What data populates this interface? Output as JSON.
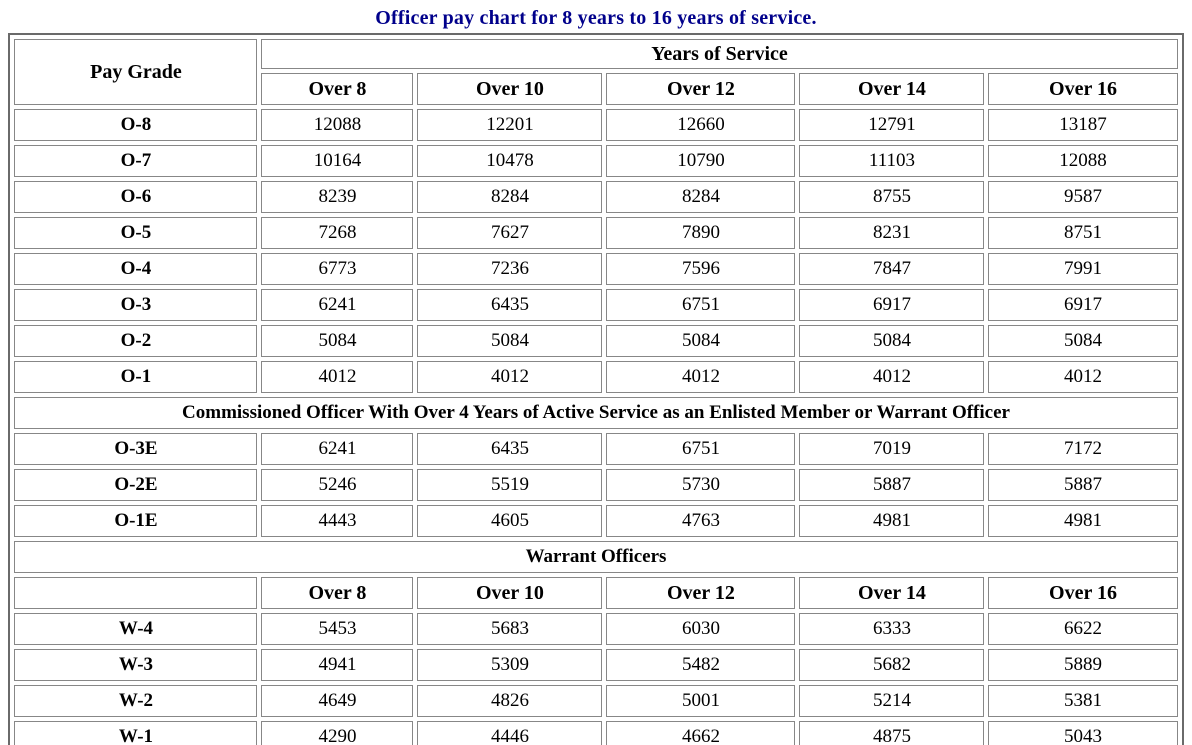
{
  "title": "Officer pay chart for 8 years to 16 years of service.",
  "colors": {
    "title_text": "#00008b",
    "outer_border": "#6a6a6a",
    "cell_border": "#878787",
    "text": "#000000",
    "background": "#ffffff"
  },
  "table": {
    "pay_grade_header": "Pay Grade",
    "years_of_service_header": "Years of Service",
    "service_columns": [
      "Over 8",
      "Over 10",
      "Over 12",
      "Over 14",
      "Over 16"
    ],
    "sections": [
      {
        "name": "officers",
        "header": null,
        "repeat_service_columns": false,
        "rows": [
          {
            "grade": "O-8",
            "values": [
              12088,
              12201,
              12660,
              12791,
              13187
            ]
          },
          {
            "grade": "O-7",
            "values": [
              10164,
              10478,
              10790,
              11103,
              12088
            ]
          },
          {
            "grade": "O-6",
            "values": [
              8239,
              8284,
              8284,
              8755,
              9587
            ]
          },
          {
            "grade": "O-5",
            "values": [
              7268,
              7627,
              7890,
              8231,
              8751
            ]
          },
          {
            "grade": "O-4",
            "values": [
              6773,
              7236,
              7596,
              7847,
              7991
            ]
          },
          {
            "grade": "O-3",
            "values": [
              6241,
              6435,
              6751,
              6917,
              6917
            ]
          },
          {
            "grade": "O-2",
            "values": [
              5084,
              5084,
              5084,
              5084,
              5084
            ]
          },
          {
            "grade": "O-1",
            "values": [
              4012,
              4012,
              4012,
              4012,
              4012
            ]
          }
        ]
      },
      {
        "name": "commissioned-with-enlisted-service",
        "header": "Commissioned Officer With Over 4 Years of Active Service as an Enlisted Member or Warrant Officer",
        "repeat_service_columns": false,
        "rows": [
          {
            "grade": "O-3E",
            "values": [
              6241,
              6435,
              6751,
              7019,
              7172
            ]
          },
          {
            "grade": "O-2E",
            "values": [
              5246,
              5519,
              5730,
              5887,
              5887
            ]
          },
          {
            "grade": "O-1E",
            "values": [
              4443,
              4605,
              4763,
              4981,
              4981
            ]
          }
        ]
      },
      {
        "name": "warrant-officers",
        "header": "Warrant Officers",
        "repeat_service_columns": true,
        "rows": [
          {
            "grade": "W-4",
            "values": [
              5453,
              5683,
              6030,
              6333,
              6622
            ]
          },
          {
            "grade": "W-3",
            "values": [
              4941,
              5309,
              5482,
              5682,
              5889
            ]
          },
          {
            "grade": "W-2",
            "values": [
              4649,
              4826,
              5001,
              5214,
              5381
            ]
          },
          {
            "grade": "W-1",
            "values": [
              4290,
              4446,
              4662,
              4875,
              5043
            ]
          }
        ]
      }
    ]
  }
}
